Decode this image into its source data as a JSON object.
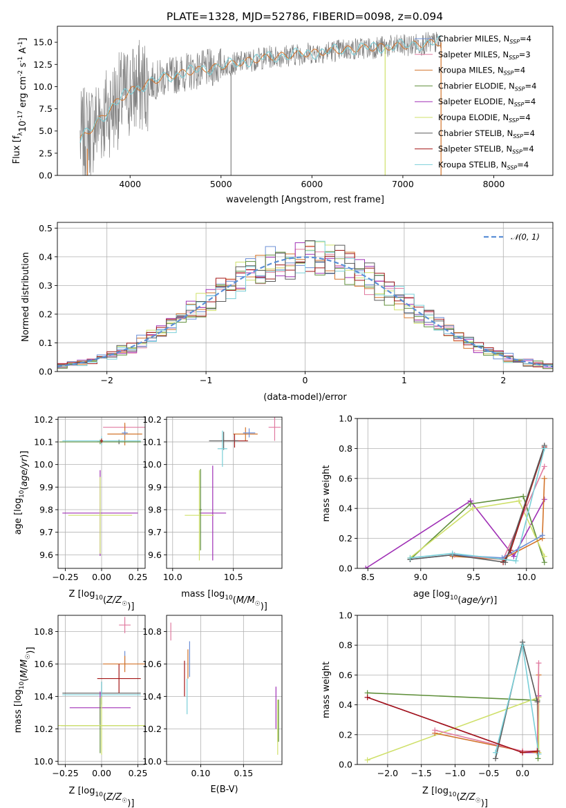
{
  "figure_title": "PLATE=1328, MJD=52786, FIBERID=0098, z=0.094",
  "colors": {
    "chabrier_miles": "#6b8fd6",
    "salpeter_miles": "#e0799f",
    "kroupa_miles": "#d2732a",
    "chabrier_elodie": "#5f8f3a",
    "salpeter_elodie": "#9f2fb5",
    "kroupa_elodie": "#cfe06a",
    "chabrier_stelib": "#5a5a5a",
    "salpeter_stelib": "#a31515",
    "kroupa_stelib": "#79cfd8",
    "data": "#808080",
    "gaussian": "#5b8fd6"
  },
  "chart_data": [
    {
      "id": "spectrum",
      "type": "line",
      "title": "PLATE=1328, MJD=52786, FIBERID=0098, z=0.094",
      "xlabel": "wavelength [Angstrom, rest frame]",
      "ylabel": "Flux [f_λ 10^-17 erg cm^-2 s^-1 A^-1]",
      "xlim": [
        3200,
        8650
      ],
      "ylim": [
        0,
        16.8
      ],
      "xticks": [
        4000,
        5000,
        6000,
        7000,
        8000
      ],
      "yticks": [
        0.0,
        2.5,
        5.0,
        7.5,
        10.0,
        12.5,
        15.0
      ],
      "grid": false,
      "legend": "top-right",
      "data_range": [
        3450,
        7420
      ],
      "spikes": [
        {
          "x": 5110,
          "y": 0
        },
        {
          "x": 6805,
          "y": 0
        },
        {
          "x": 7420,
          "y": 0
        }
      ],
      "continuum": {
        "x": [
          3450,
          3600,
          3800,
          4000,
          4300,
          4600,
          5000,
          5500,
          6000,
          6500,
          7000,
          7420
        ],
        "y": [
          4.0,
          5.5,
          7.8,
          9.5,
          10.8,
          11.6,
          12.3,
          13.3,
          13.8,
          14.3,
          14.6,
          15.0
        ]
      },
      "series": [
        {
          "name": "Chabrier MILES, N_SSP=4",
          "key": "chabrier_miles"
        },
        {
          "name": "Salpeter MILES, N_SSP=3",
          "key": "salpeter_miles"
        },
        {
          "name": "Kroupa MILES, N_SSP=4",
          "key": "kroupa_miles"
        },
        {
          "name": "Chabrier ELODIE, N_SSP=4",
          "key": "chabrier_elodie"
        },
        {
          "name": "Salpeter ELODIE, N_SSP=4",
          "key": "salpeter_elodie"
        },
        {
          "name": "Kroupa ELODIE, N_SSP=4",
          "key": "kroupa_elodie"
        },
        {
          "name": "Chabrier STELIB, N_SSP=4",
          "key": "chabrier_stelib"
        },
        {
          "name": "Salpeter STELIB, N_SSP=4",
          "key": "salpeter_stelib"
        },
        {
          "name": "Kroupa STELIB, N_SSP=4",
          "key": "kroupa_stelib"
        }
      ]
    },
    {
      "id": "residuals",
      "type": "histogram",
      "xlabel": "(data-model)/error",
      "ylabel": "Normed distribution",
      "xlim": [
        -2.5,
        2.5
      ],
      "ylim": [
        0,
        0.52
      ],
      "xticks": [
        -2,
        -1,
        0,
        1,
        2
      ],
      "yticks": [
        0.0,
        0.1,
        0.2,
        0.3,
        0.4,
        0.5
      ],
      "grid": true,
      "legend": "top-right",
      "bin_width": 0.1,
      "reference": {
        "name": "𝒩(0, 1)",
        "key": "gaussian",
        "mean": 0,
        "sigma": 1
      }
    },
    {
      "id": "age_vs_Z",
      "type": "errorbar",
      "xlabel": "Z [log10(Z/Z☉)]",
      "ylabel": "age [log10(age/yr)]",
      "xlim": [
        -0.3,
        0.3
      ],
      "ylim": [
        9.54,
        10.21
      ],
      "xticks": [
        -0.25,
        0.0,
        0.25
      ],
      "yticks": [
        9.6,
        9.7,
        9.8,
        9.9,
        10.0,
        10.1,
        10.2
      ],
      "grid": true,
      "points": [
        {
          "key": "salpeter_miles",
          "x": 0.16,
          "y": 10.165,
          "xerr": 0.15,
          "yerr": 0.012
        },
        {
          "key": "kroupa_miles",
          "x": 0.16,
          "y": 10.135,
          "xerr": 0.12,
          "yerr": 0.05
        },
        {
          "key": "chabrier_miles",
          "x": 0.16,
          "y": 10.14,
          "xerr": 0.02,
          "yerr": 0.01
        },
        {
          "key": "chabrier_stelib",
          "x": 0.12,
          "y": 10.1,
          "xerr": 0.15,
          "yerr": 0.01
        },
        {
          "key": "chabrier_elodie",
          "x": -0.01,
          "y": 10.1,
          "xerr": 0.28,
          "yerr": 0.01
        },
        {
          "key": "kroupa_stelib",
          "x": 0.0,
          "y": 10.105,
          "xerr": 0.27,
          "yerr": 0.02
        },
        {
          "key": "salpeter_stelib",
          "x": 0.0,
          "y": 10.105,
          "xerr": 0.01,
          "yerr": 0.01
        },
        {
          "key": "salpeter_elodie",
          "x": -0.01,
          "y": 9.785,
          "xerr": 0.26,
          "yerr": 0.19
        },
        {
          "key": "kroupa_elodie",
          "x": -0.01,
          "y": 9.775,
          "xerr": 0.22,
          "yerr": 0.17
        }
      ]
    },
    {
      "id": "age_vs_mass",
      "type": "errorbar",
      "xlabel": "mass [log10(M/M☉)]",
      "xlim": [
        9.95,
        10.9
      ],
      "ylim": [
        9.54,
        10.21
      ],
      "xticks": [
        10.0,
        10.5
      ],
      "yticks": [
        9.6,
        9.7,
        9.8,
        9.9,
        10.0,
        10.1,
        10.2
      ],
      "grid": true,
      "points": [
        {
          "key": "salpeter_miles",
          "x": 10.84,
          "y": 10.165,
          "xerr": 0.05,
          "yerr": 0.06
        },
        {
          "key": "kroupa_miles",
          "x": 10.6,
          "y": 10.135,
          "xerr": 0.1,
          "yerr": 0.03
        },
        {
          "key": "chabrier_miles",
          "x": 10.63,
          "y": 10.14,
          "xerr": 0.05,
          "yerr": 0.02
        },
        {
          "key": "salpeter_stelib",
          "x": 10.51,
          "y": 10.105,
          "xerr": 0.11,
          "yerr": 0.03
        },
        {
          "key": "chabrier_stelib",
          "x": 10.42,
          "y": 10.105,
          "xerr": 0.12,
          "yerr": 0.04
        },
        {
          "key": "kroupa_stelib",
          "x": 10.41,
          "y": 10.07,
          "xerr": 0.04,
          "yerr": 0.08
        },
        {
          "key": "salpeter_elodie",
          "x": 10.33,
          "y": 9.785,
          "xerr": 0.11,
          "yerr": 0.21
        },
        {
          "key": "kroupa_elodie",
          "x": 10.22,
          "y": 9.775,
          "xerr": 0.12,
          "yerr": 0.2
        },
        {
          "key": "chabrier_elodie",
          "x": 10.23,
          "y": 9.8,
          "xerr": 0.01,
          "yerr": 0.18
        }
      ]
    },
    {
      "id": "weight_vs_age",
      "type": "line",
      "xlabel": "age [log10(age/yr)]",
      "ylabel": "mass weight",
      "xlim": [
        8.4,
        10.25
      ],
      "ylim": [
        0,
        1.0
      ],
      "xticks": [
        8.5,
        9.0,
        9.5,
        10.0
      ],
      "yticks": [
        0.0,
        0.2,
        0.4,
        0.6,
        0.8,
        1.0
      ],
      "grid": true,
      "series": [
        {
          "key": "salpeter_elodie",
          "x": [
            8.48,
            9.47,
            9.88,
            10.17
          ],
          "y": [
            0.0,
            0.45,
            0.08,
            0.46
          ]
        },
        {
          "key": "chabrier_elodie",
          "x": [
            8.9,
            9.47,
            9.97,
            10.17
          ],
          "y": [
            0.06,
            0.43,
            0.48,
            0.04
          ]
        },
        {
          "key": "kroupa_elodie",
          "x": [
            8.9,
            9.49,
            9.93,
            10.17
          ],
          "y": [
            0.07,
            0.4,
            0.45,
            0.08
          ]
        },
        {
          "key": "kroupa_miles",
          "x": [
            9.3,
            9.77,
            10.15,
            10.17
          ],
          "y": [
            0.08,
            0.06,
            0.2,
            0.6
          ]
        },
        {
          "key": "salpeter_miles",
          "x": [
            9.32,
            9.78,
            10.17
          ],
          "y": [
            0.09,
            0.06,
            0.68
          ]
        },
        {
          "key": "chabrier_miles",
          "x": [
            8.9,
            9.3,
            9.77,
            10.15
          ],
          "y": [
            0.06,
            0.09,
            0.07,
            0.22
          ]
        },
        {
          "key": "salpeter_stelib",
          "x": [
            9.78,
            9.85,
            10.17
          ],
          "y": [
            0.04,
            0.12,
            0.81
          ]
        },
        {
          "key": "chabrier_stelib",
          "x": [
            8.9,
            9.3,
            9.8,
            10.17
          ],
          "y": [
            0.06,
            0.09,
            0.04,
            0.82
          ]
        },
        {
          "key": "kroupa_stelib",
          "x": [
            8.9,
            9.3,
            9.9,
            10.17
          ],
          "y": [
            0.07,
            0.1,
            0.05,
            0.8
          ]
        }
      ]
    },
    {
      "id": "mass_vs_Z",
      "type": "errorbar",
      "xlabel": "Z [log10(Z/Z☉)]",
      "ylabel": "mass [log10(M/M☉)]",
      "xlim": [
        -0.3,
        0.3
      ],
      "ylim": [
        9.98,
        10.9
      ],
      "xticks": [
        -0.25,
        0.0,
        0.25
      ],
      "yticks": [
        10.0,
        10.2,
        10.4,
        10.6,
        10.8
      ],
      "grid": true,
      "points": [
        {
          "key": "salpeter_miles",
          "x": 0.16,
          "y": 10.84,
          "xerr": 0.04,
          "yerr": 0.05
        },
        {
          "key": "chabrier_miles",
          "x": 0.16,
          "y": 10.63,
          "xerr": 0.0,
          "yerr": 0.05
        },
        {
          "key": "kroupa_miles",
          "x": 0.16,
          "y": 10.6,
          "xerr": 0.15,
          "yerr": 0.05
        },
        {
          "key": "salpeter_stelib",
          "x": 0.12,
          "y": 10.51,
          "xerr": 0.15,
          "yerr": 0.09
        },
        {
          "key": "chabrier_stelib",
          "x": 0.0,
          "y": 10.42,
          "xerr": 0.27,
          "yerr": 0.07
        },
        {
          "key": "kroupa_stelib",
          "x": 0.0,
          "y": 10.41,
          "xerr": 0.27,
          "yerr": 0.08
        },
        {
          "key": "salpeter_elodie",
          "x": -0.01,
          "y": 10.33,
          "xerr": 0.21,
          "yerr": 0.1
        },
        {
          "key": "chabrier_elodie",
          "x": -0.01,
          "y": 10.22,
          "xerr": 0.27,
          "yerr": 0.17
        },
        {
          "key": "kroupa_elodie",
          "x": 0.0,
          "y": 10.22,
          "xerr": 0.3,
          "yerr": 0.18
        }
      ]
    },
    {
      "id": "mass_vs_ebv",
      "type": "errorbar",
      "xlabel": "E(B-V)",
      "xlim": [
        0.06,
        0.195
      ],
      "ylim": [
        9.98,
        10.9
      ],
      "xticks": [
        0.1,
        0.15
      ],
      "yticks": [
        10.0,
        10.2,
        10.4,
        10.6,
        10.8
      ],
      "grid": true,
      "points": [
        {
          "key": "salpeter_miles",
          "x": 0.065,
          "y": 10.8,
          "xerr": 0,
          "yerr": 0.055
        },
        {
          "key": "chabrier_miles",
          "x": 0.087,
          "y": 10.63,
          "xerr": 0,
          "yerr": 0.11
        },
        {
          "key": "kroupa_miles",
          "x": 0.085,
          "y": 10.6,
          "xerr": 0,
          "yerr": 0.09
        },
        {
          "key": "salpeter_stelib",
          "x": 0.081,
          "y": 10.51,
          "xerr": 0,
          "yerr": 0.11
        },
        {
          "key": "kroupa_stelib",
          "x": 0.084,
          "y": 10.4,
          "xerr": 0,
          "yerr": 0.11
        },
        {
          "key": "salpeter_elodie",
          "x": 0.188,
          "y": 10.33,
          "xerr": 0,
          "yerr": 0.13
        },
        {
          "key": "kroupa_elodie",
          "x": 0.19,
          "y": 10.21,
          "xerr": 0,
          "yerr": 0.17
        },
        {
          "key": "chabrier_elodie",
          "x": 0.191,
          "y": 10.25,
          "xerr": 0,
          "yerr": 0.13
        }
      ]
    },
    {
      "id": "weight_vs_Z",
      "type": "line",
      "xlabel": "Z [log10(Z/Z☉)]",
      "ylabel": "mass weight",
      "xlim": [
        -2.45,
        0.45
      ],
      "ylim": [
        0,
        1.0
      ],
      "xticks": [
        -2.0,
        -1.5,
        -1.0,
        -0.5,
        0.0
      ],
      "yticks": [
        0.0,
        0.2,
        0.4,
        0.6,
        0.8,
        1.0
      ],
      "grid": true,
      "series": [
        {
          "key": "salpeter_elodie",
          "x": [
            -2.3,
            0.0,
            0.22,
            0.24
          ],
          "y": [
            0.45,
            0.08,
            0.08,
            0.46
          ]
        },
        {
          "key": "chabrier_elodie",
          "x": [
            -2.3,
            0.22,
            0.23
          ],
          "y": [
            0.48,
            0.43,
            0.04
          ]
        },
        {
          "key": "kroupa_elodie",
          "x": [
            -2.3,
            0.24,
            0.24
          ],
          "y": [
            0.03,
            0.45,
            0.08
          ]
        },
        {
          "key": "kroupa_miles",
          "x": [
            -1.3,
            0.0,
            0.22,
            0.24
          ],
          "y": [
            0.21,
            0.09,
            0.08,
            0.6
          ]
        },
        {
          "key": "salpeter_miles",
          "x": [
            -1.3,
            0.0,
            0.22,
            0.24
          ],
          "y": [
            0.23,
            0.09,
            0.09,
            0.68
          ]
        },
        {
          "key": "chabrier_stelib",
          "x": [
            -0.4,
            0.0,
            0.22
          ],
          "y": [
            0.04,
            0.82,
            0.42
          ]
        },
        {
          "key": "kroupa_stelib",
          "x": [
            -0.4,
            0.0,
            0.24
          ],
          "y": [
            0.08,
            0.8,
            0.07
          ]
        },
        {
          "key": "salpeter_stelib",
          "x": [
            -2.3,
            0.0,
            0.22
          ],
          "y": [
            0.45,
            0.08,
            0.09
          ]
        }
      ]
    }
  ]
}
